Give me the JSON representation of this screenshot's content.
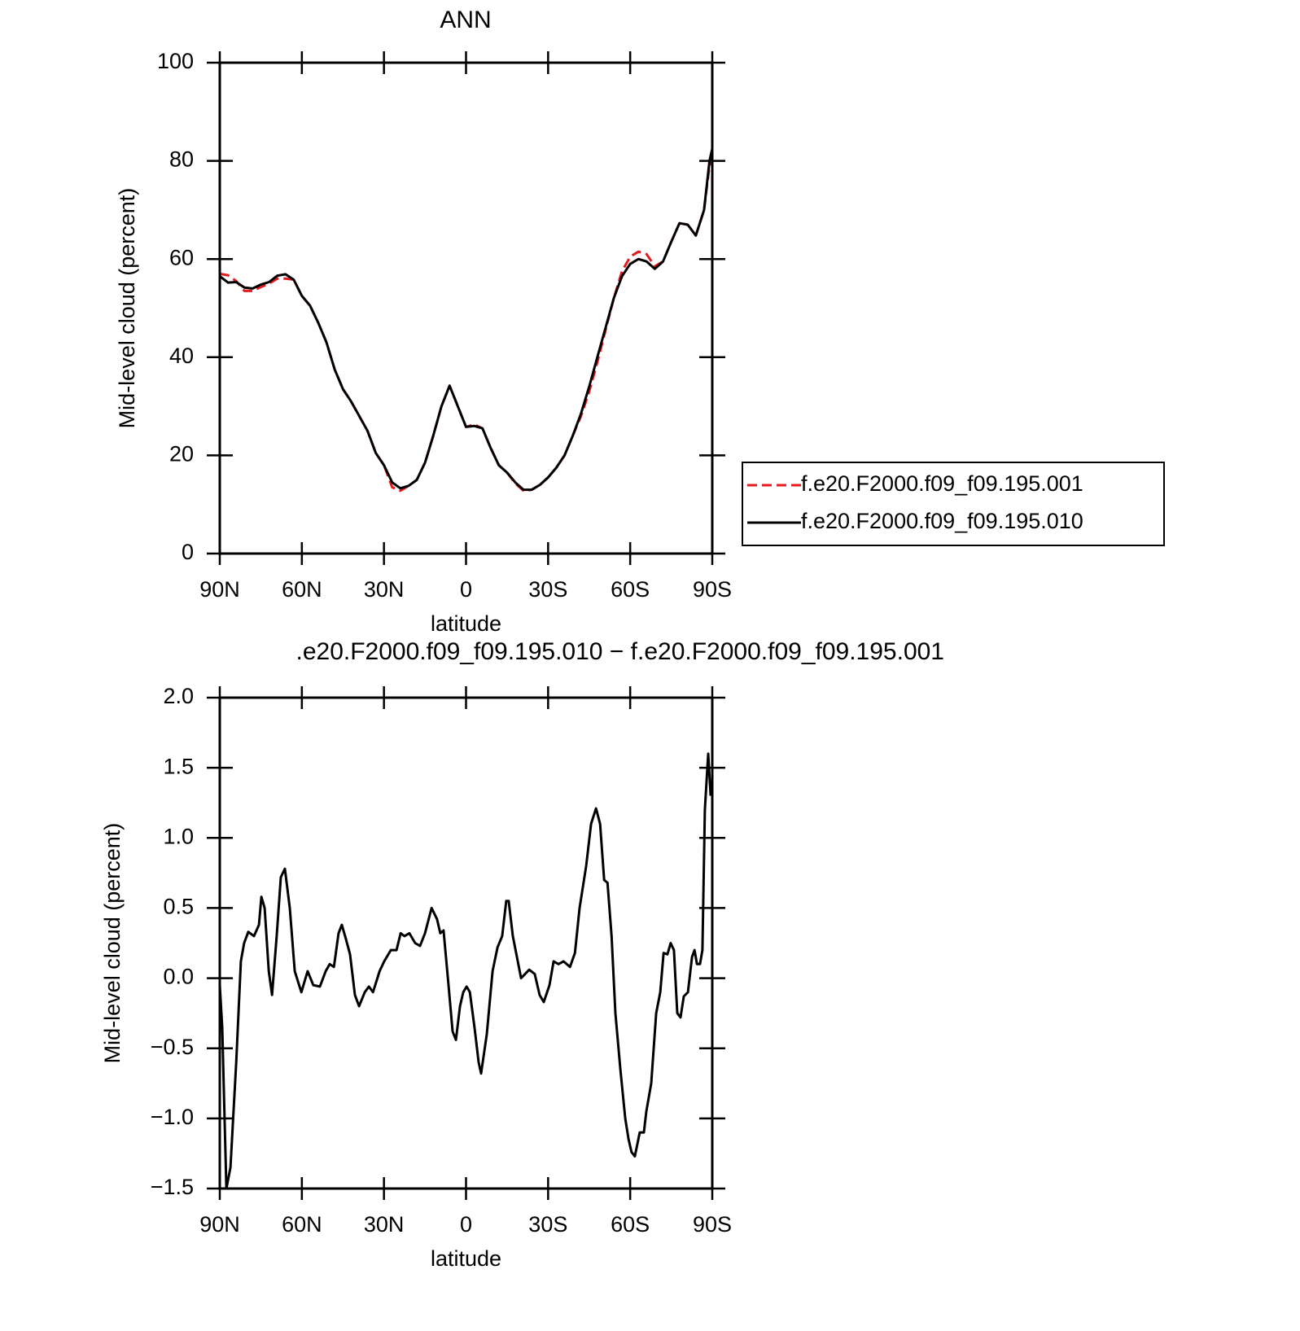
{
  "chart_data": [
    {
      "type": "line",
      "title": "ANN",
      "xlabel": "latitude",
      "ylabel": "Mid-level cloud (percent)",
      "xlim": [
        90,
        -90
      ],
      "xticks": [
        {
          "value": 90,
          "label": "90N"
        },
        {
          "value": 60,
          "label": "60N"
        },
        {
          "value": 30,
          "label": "30N"
        },
        0,
        {
          "value": -30,
          "label": "30S"
        },
        {
          "value": -60,
          "label": "60S"
        },
        {
          "value": -90,
          "label": "90S"
        }
      ],
      "ylim": [
        0,
        100
      ],
      "yticks": [
        0,
        20,
        40,
        60,
        80,
        100
      ],
      "legend": "right",
      "x": [
        90,
        87,
        84,
        81,
        78,
        75,
        72,
        69,
        66,
        63,
        60,
        57,
        54,
        51,
        48,
        45,
        42,
        39,
        36,
        33,
        30,
        27,
        24,
        21,
        18,
        15,
        12,
        9,
        6,
        3,
        0,
        -3,
        -6,
        -9,
        -12,
        -15,
        -18,
        -21,
        -24,
        -27,
        -30,
        -33,
        -36,
        -39,
        -42,
        -45,
        -48,
        -51,
        -54,
        -57,
        -60,
        -63,
        -66,
        -69,
        -72,
        -75,
        -78,
        -81,
        -84,
        -87,
        -89,
        -90
      ],
      "series": [
        {
          "name": "f.e20.F2000.f09_f09.195.001",
          "color": "#e41a1c",
          "dash": true,
          "values": [
            57,
            56.7,
            55.5,
            53.5,
            53.5,
            54.3,
            55,
            56,
            56,
            55.8,
            52.5,
            50.5,
            47,
            43,
            37.5,
            33.5,
            31,
            28,
            25,
            20.5,
            18,
            13.5,
            12.8,
            13.8,
            15,
            18.5,
            24,
            30,
            34.2,
            30,
            25.8,
            26.3,
            25.5,
            21.5,
            18,
            16.5,
            14.3,
            12.8,
            13,
            14,
            15.5,
            17.5,
            20,
            24,
            28,
            33,
            39,
            45.5,
            52,
            57.5,
            60.5,
            61.5,
            61,
            58.5,
            59.5,
            63.5,
            67.3,
            67,
            64.8,
            70,
            79,
            80
          ]
        },
        {
          "name": "f.e20.F2000.f09_f09.195.010",
          "color": "#000000",
          "dash": false,
          "values": [
            56.5,
            55.2,
            55.3,
            54.2,
            54,
            54.8,
            55.3,
            56.6,
            56.9,
            55.8,
            52.5,
            50.5,
            47,
            43,
            37.5,
            33.5,
            31,
            28,
            25,
            20.5,
            18,
            14.5,
            13.3,
            13.8,
            15,
            18.5,
            24,
            30,
            34.2,
            30,
            25.8,
            26,
            25.5,
            21.5,
            18,
            16.5,
            14.5,
            13,
            13,
            14,
            15.5,
            17.5,
            20,
            24,
            28.5,
            34,
            40,
            46,
            52,
            56.5,
            59,
            60,
            59.5,
            58,
            59.5,
            63.5,
            67.3,
            67,
            64.8,
            70,
            80,
            82.5
          ]
        }
      ]
    },
    {
      "type": "line",
      "title": ".e20.F2000.f09_f09.195.010 − f.e20.F2000.f09_f09.195.001",
      "xlabel": "latitude",
      "ylabel": "Mid-level cloud (percent)",
      "xlim": [
        90,
        -90
      ],
      "xticks": [
        {
          "value": 90,
          "label": "90N"
        },
        {
          "value": 60,
          "label": "60N"
        },
        {
          "value": 30,
          "label": "30N"
        },
        0,
        {
          "value": -30,
          "label": "30S"
        },
        {
          "value": -60,
          "label": "60S"
        },
        {
          "value": -90,
          "label": "90S"
        }
      ],
      "ylim": [
        -1.5,
        2
      ],
      "yticks": [
        {
          "value": -1.5,
          "label": "−1.5"
        },
        {
          "value": -1,
          "label": "−1.0"
        },
        {
          "value": -0.5,
          "label": "−0.5"
        },
        {
          "value": 0,
          "label": "0.0"
        },
        0.5,
        {
          "value": 1,
          "label": "1.0"
        },
        1.5,
        {
          "value": 2,
          "label": "2.0"
        }
      ],
      "x": [
        90,
        89.1,
        87.6,
        86.1,
        84.0,
        82.3,
        81.1,
        79.6,
        77.5,
        75.7,
        74.8,
        73.6,
        72.1,
        70.9,
        69.2,
        67.7,
        66.2,
        64.4,
        62.6,
        60.2,
        57.9,
        55.8,
        53.4,
        51.3,
        49.8,
        48.3,
        46.6,
        45.4,
        43.9,
        42.4,
        40.6,
        39.1,
        37.0,
        35.5,
        34.0,
        31.6,
        29.9,
        27.5,
        25.4,
        23.9,
        22.5,
        20.7,
        18.6,
        16.8,
        15.0,
        12.6,
        10.6,
        9.4,
        8.2,
        6.4,
        4.9,
        3.7,
        2.2,
        1.0,
        -0.2,
        -1.4,
        -3.1,
        -4.6,
        -5.5,
        -7.6,
        -9.7,
        -11.5,
        -13.2,
        -14.7,
        -15.6,
        -17.1,
        -20.1,
        -21.6,
        -23.1,
        -25.1,
        -26.9,
        -28.4,
        -30.5,
        -32.0,
        -33.8,
        -35.6,
        -38.0,
        -39.8,
        -41.5,
        -43.9,
        -45.7,
        -47.5,
        -49.0,
        -50.5,
        -51.7,
        -53.2,
        -54.6,
        -56.4,
        -58.2,
        -59.4,
        -60.5,
        -61.7,
        -63.5,
        -65.0,
        -65.9,
        -67.7,
        -69.5,
        -71.0,
        -72.2,
        -73.6,
        -74.8,
        -76.0,
        -77.2,
        -78.4,
        -79.6,
        -81.1,
        -82.6,
        -83.5,
        -84.4,
        -85.5,
        -86.4,
        -87.3,
        -88.5,
        -89.4
      ],
      "series": [
        {
          "color": "#000000",
          "values": [
            -0.05,
            -0.35,
            -1.5,
            -1.35,
            -0.6,
            0.12,
            0.25,
            0.33,
            0.3,
            0.38,
            0.58,
            0.5,
            0.05,
            -0.12,
            0.3,
            0.72,
            0.78,
            0.5,
            0.05,
            -0.1,
            0.05,
            -0.05,
            -0.06,
            0.05,
            0.1,
            0.08,
            0.32,
            0.38,
            0.28,
            0.17,
            -0.12,
            -0.2,
            -0.1,
            -0.06,
            -0.1,
            0.05,
            0.12,
            0.2,
            0.2,
            0.32,
            0.3,
            0.32,
            0.25,
            0.23,
            0.32,
            0.5,
            0.42,
            0.32,
            0.34,
            -0.05,
            -0.38,
            -0.44,
            -0.2,
            -0.1,
            -0.06,
            -0.1,
            -0.35,
            -0.6,
            -0.68,
            -0.4,
            0.05,
            0.22,
            0.3,
            0.55,
            0.55,
            0.3,
            0,
            0.03,
            0.06,
            0.03,
            -0.12,
            -0.17,
            -0.05,
            0.12,
            0.1,
            0.12,
            0.08,
            0.18,
            0.5,
            0.8,
            1.1,
            1.21,
            1.1,
            0.7,
            0.68,
            0.3,
            -0.25,
            -0.65,
            -1.0,
            -1.15,
            -1.24,
            -1.27,
            -1.1,
            -1.1,
            -0.95,
            -0.75,
            -0.25,
            -0.1,
            0.18,
            0.17,
            0.25,
            0.2,
            -0.25,
            -0.28,
            -0.13,
            -0.1,
            0.15,
            0.2,
            0.1,
            0.1,
            0.2,
            1.2,
            1.6,
            1.3
          ]
        }
      ]
    }
  ]
}
